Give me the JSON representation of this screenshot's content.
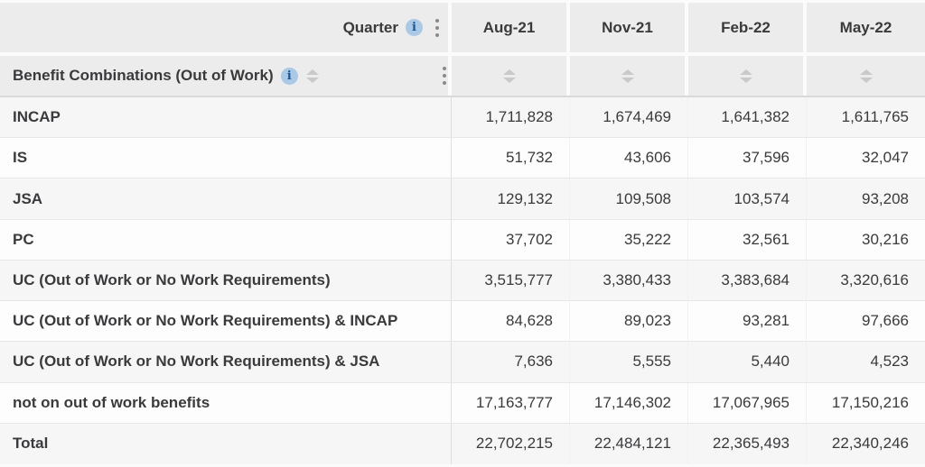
{
  "table": {
    "quarter_header": {
      "label": "Quarter",
      "info_icon": "info-icon",
      "menu_icon": "kebab-menu-icon"
    },
    "row_dimension_header": {
      "label": "Benefit Combinations (Out of Work)",
      "info_icon": "info-icon",
      "sort_icon": "sort-icon",
      "menu_icon": "kebab-menu-icon"
    },
    "columns": [
      "Aug-21",
      "Nov-21",
      "Feb-22",
      "May-22"
    ],
    "rows": [
      {
        "label": "INCAP",
        "values": [
          "1,711,828",
          "1,674,469",
          "1,641,382",
          "1,611,765"
        ]
      },
      {
        "label": "IS",
        "values": [
          "51,732",
          "43,606",
          "37,596",
          "32,047"
        ]
      },
      {
        "label": "JSA",
        "values": [
          "129,132",
          "109,508",
          "103,574",
          "93,208"
        ]
      },
      {
        "label": "PC",
        "values": [
          "37,702",
          "35,222",
          "32,561",
          "30,216"
        ]
      },
      {
        "label": "UC (Out of Work or No Work Requirements)",
        "values": [
          "3,515,777",
          "3,380,433",
          "3,383,684",
          "3,320,616"
        ]
      },
      {
        "label": "UC (Out of Work or No Work Requirements) & INCAP",
        "values": [
          "84,628",
          "89,023",
          "93,281",
          "97,666"
        ]
      },
      {
        "label": "UC (Out of Work or No Work Requirements) & JSA",
        "values": [
          "7,636",
          "5,555",
          "5,440",
          "4,523"
        ]
      },
      {
        "label": "not on out of work benefits",
        "values": [
          "17,163,777",
          "17,146,302",
          "17,067,965",
          "17,150,216"
        ]
      },
      {
        "label": "Total",
        "values": [
          "22,702,215",
          "22,484,121",
          "22,365,493",
          "22,340,246"
        ]
      }
    ]
  },
  "icons": {
    "info_glyph": "i"
  },
  "colors": {
    "header_bg": "#ececec",
    "row_stripe": "#f6f6f7",
    "row_white": "#fdfdfd",
    "header_border": "#d9d9d9",
    "row_border": "#e7e7e7",
    "info_icon_bg": "#a9c9e6",
    "info_icon_glyph": "#1d5692",
    "sort_arrow": "#c9c9c9",
    "kebab_dot": "#8a8a8a",
    "text": "#3a3a3c"
  }
}
